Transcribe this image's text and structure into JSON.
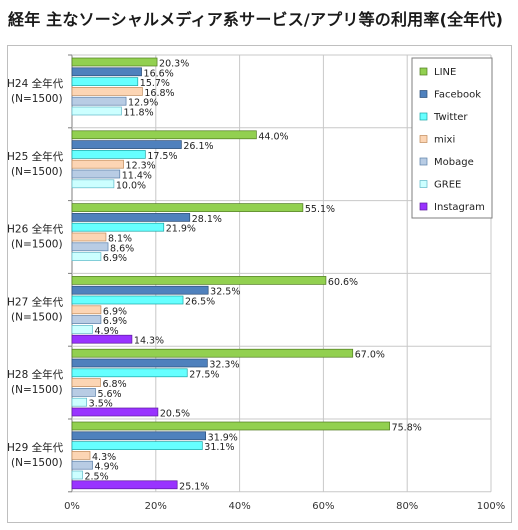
{
  "chart_data": {
    "type": "bar",
    "orientation": "horizontal",
    "title": "経年 主なソーシャルメディア系サービス/アプリ等の利用率(全年代)",
    "groups": [
      {
        "year": "H24 全年代",
        "n": "(N=1500)"
      },
      {
        "year": "H25 全年代",
        "n": "(N=1500)"
      },
      {
        "year": "H26 全年代",
        "n": "(N=1500)"
      },
      {
        "year": "H27 全年代",
        "n": "(N=1500)"
      },
      {
        "year": "H28 全年代",
        "n": "(N=1500)"
      },
      {
        "year": "H29 全年代",
        "n": "(N=1500)"
      }
    ],
    "series": [
      {
        "name": "LINE",
        "color": "#92d050",
        "edge": "#4f7a1e",
        "values": [
          20.3,
          44.0,
          55.1,
          60.6,
          67.0,
          75.8
        ]
      },
      {
        "name": "Facebook",
        "color": "#4f81bd",
        "edge": "#2c4d75",
        "values": [
          16.6,
          26.1,
          28.1,
          32.5,
          32.3,
          31.9
        ]
      },
      {
        "name": "Twitter",
        "color": "#66ffff",
        "edge": "#1aa6a6",
        "values": [
          15.7,
          17.5,
          21.9,
          26.5,
          27.5,
          31.1
        ]
      },
      {
        "name": "mixi",
        "color": "#fcd5b4",
        "edge": "#c08a5a",
        "values": [
          16.8,
          12.3,
          8.1,
          6.9,
          6.8,
          4.3
        ]
      },
      {
        "name": "Mobage",
        "color": "#b8cce4",
        "edge": "#5b7fa8",
        "values": [
          12.9,
          11.4,
          8.6,
          6.9,
          5.6,
          4.9
        ]
      },
      {
        "name": "GREE",
        "color": "#ccffff",
        "edge": "#5fb8c8",
        "values": [
          11.8,
          10.0,
          6.9,
          4.9,
          3.5,
          2.5
        ]
      },
      {
        "name": "Instagram",
        "color": "#9933ff",
        "edge": "#5c1a9e",
        "values": [
          null,
          null,
          null,
          14.3,
          20.5,
          25.1
        ]
      }
    ],
    "xlim": [
      0,
      100
    ],
    "xticks": [
      "0%",
      "20%",
      "40%",
      "60%",
      "80%",
      "100%"
    ],
    "value_suffix": "%",
    "grid": true,
    "legend_position": "top-right"
  }
}
